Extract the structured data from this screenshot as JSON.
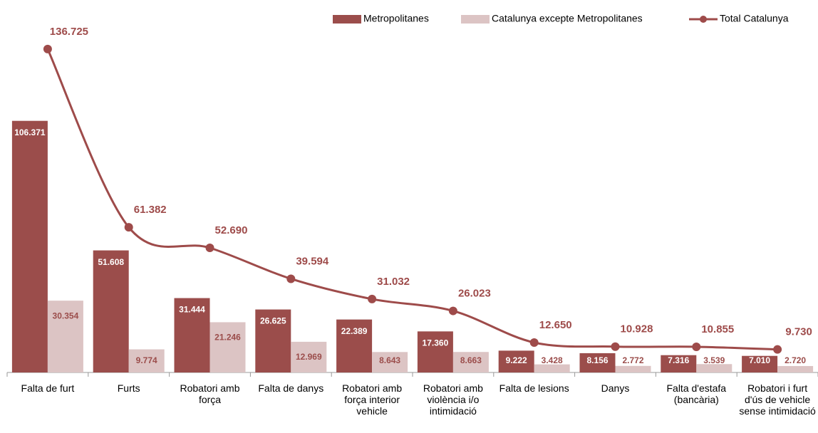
{
  "chart_data": {
    "type": "bar-line",
    "categories": [
      "Falta de furt",
      "Furts",
      "Robatori amb força",
      "Falta de danys",
      "Robatori amb força interior vehicle",
      "Robatori amb violència i/o intimidació",
      "Falta de lesions",
      "Danys",
      "Falta d'estafa (bancària)",
      "Robatori i furt d'ús de vehicle sense intimidació"
    ],
    "series": [
      {
        "name": "Metropolitanes",
        "type": "bar",
        "color": "#9b4d4b",
        "values": [
          106371,
          51608,
          31444,
          26625,
          22389,
          17360,
          9222,
          8156,
          7316,
          7010
        ],
        "value_labels": [
          "106.371",
          "51.608",
          "31.444",
          "26.625",
          "22.389",
          "17.360",
          "9.222",
          "8.156",
          "7.316",
          "7.010"
        ]
      },
      {
        "name": "Catalunya excepte Metropolitanes",
        "type": "bar",
        "color": "#dcc4c4",
        "values": [
          30354,
          9774,
          21246,
          12969,
          8643,
          8663,
          3428,
          2772,
          3539,
          2720
        ],
        "value_labels": [
          "30.354",
          "9.774",
          "21.246",
          "12.969",
          "8.643",
          "8.663",
          "3.428",
          "2.772",
          "3.539",
          "2.720"
        ]
      },
      {
        "name": "Total Catalunya",
        "type": "line",
        "color": "#9e4b4a",
        "values": [
          136725,
          61382,
          52690,
          39594,
          31032,
          26023,
          12650,
          10928,
          10855,
          9730
        ],
        "value_labels": [
          "136.725",
          "61.382",
          "52.690",
          "39.594",
          "31.032",
          "26.023",
          "12.650",
          "10.928",
          "10.855",
          "9.730"
        ]
      }
    ],
    "ylim": [
      0,
      140000
    ],
    "legend": "top-right"
  }
}
